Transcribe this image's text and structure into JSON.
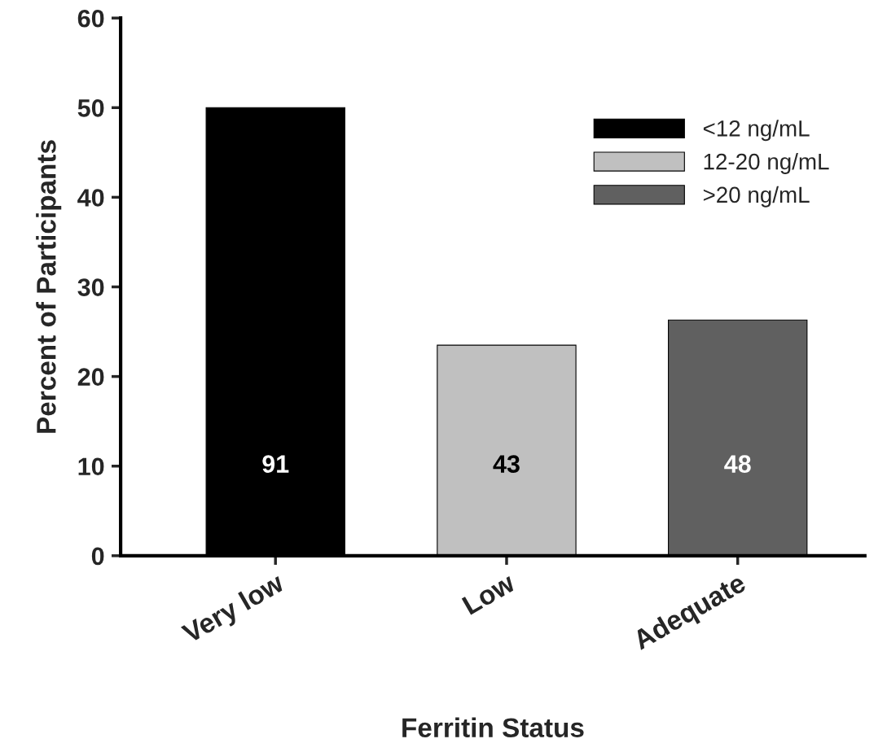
{
  "chart_data": {
    "type": "bar",
    "xlabel": "Ferritin Status",
    "ylabel": "Percent of Participants",
    "categories": [
      "Very low",
      "Low",
      "Adequate"
    ],
    "series": [
      {
        "name": "<12 ng/mL",
        "color": "#000000",
        "values": [
          50,
          null,
          null
        ]
      },
      {
        "name": "12-20 ng/mL",
        "color": "#c0c0c0",
        "values": [
          null,
          23.5,
          null
        ]
      },
      {
        "name": ">20 ng/mL",
        "color": "#606060",
        "values": [
          null,
          null,
          26.3
        ]
      }
    ],
    "annotations": [
      "91",
      "43",
      "48"
    ],
    "ylim": [
      0,
      60
    ],
    "yticks": [
      0,
      10,
      20,
      30,
      40,
      50,
      60
    ],
    "grid": false,
    "legend": "top right"
  }
}
